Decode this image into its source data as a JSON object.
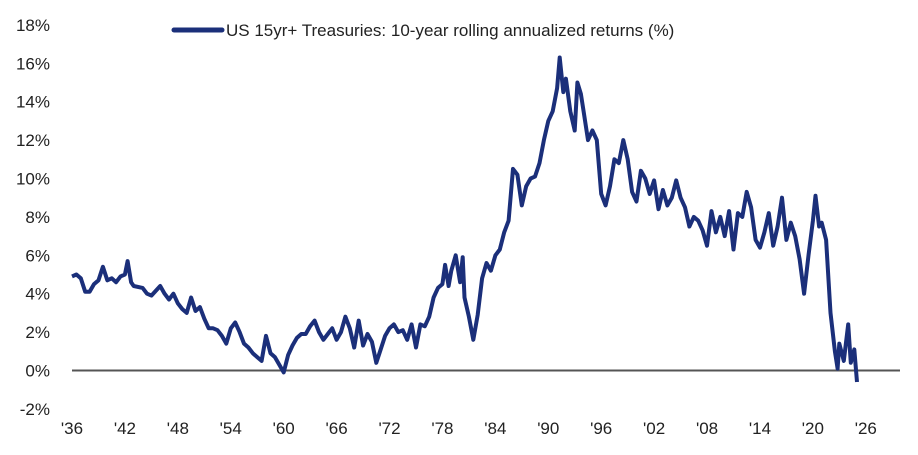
{
  "chart_data": {
    "type": "line",
    "title": "",
    "xlabel": "",
    "ylabel": "",
    "xlim": [
      1936,
      2026
    ],
    "ylim": [
      -2,
      18
    ],
    "grid": false,
    "legend_position": "top-center",
    "x_tick_labels": [
      "'36",
      "'42",
      "'48",
      "'54",
      "'60",
      "'66",
      "'72",
      "'78",
      "'84",
      "'90",
      "'96",
      "'02",
      "'08",
      "'14",
      "'20",
      "'26"
    ],
    "x_tick_values": [
      1936,
      1942,
      1948,
      1954,
      1960,
      1966,
      1972,
      1978,
      1984,
      1990,
      1996,
      2002,
      2008,
      2014,
      2020,
      2026
    ],
    "y_tick_labels": [
      "18%",
      "16%",
      "14%",
      "12%",
      "10%",
      "8%",
      "6%",
      "4%",
      "2%",
      "0%",
      "-2%"
    ],
    "y_tick_values": [
      18,
      16,
      14,
      12,
      10,
      8,
      6,
      4,
      2,
      0,
      -2
    ],
    "zero_line_color": "#555555",
    "series": [
      {
        "name": "US 15yr+ Treasuries: 10-year rolling annualized returns (%)",
        "color": "#1b2f7a",
        "points": [
          [
            1936,
            4.9
          ],
          [
            1936.5,
            5.0
          ],
          [
            1937,
            4.8
          ],
          [
            1937.5,
            4.1
          ],
          [
            1938,
            4.1
          ],
          [
            1938.5,
            4.5
          ],
          [
            1939,
            4.7
          ],
          [
            1939.5,
            5.4
          ],
          [
            1940,
            4.7
          ],
          [
            1940.5,
            4.8
          ],
          [
            1941,
            4.6
          ],
          [
            1941.5,
            4.9
          ],
          [
            1942,
            5.0
          ],
          [
            1942.3,
            5.7
          ],
          [
            1942.7,
            4.6
          ],
          [
            1943,
            4.4
          ],
          [
            1944,
            4.3
          ],
          [
            1944.5,
            4.0
          ],
          [
            1945,
            3.9
          ],
          [
            1946,
            4.4
          ],
          [
            1946.5,
            4.0
          ],
          [
            1947,
            3.7
          ],
          [
            1947.5,
            4.0
          ],
          [
            1948,
            3.5
          ],
          [
            1948.5,
            3.2
          ],
          [
            1949,
            3.0
          ],
          [
            1949.5,
            3.8
          ],
          [
            1950,
            3.1
          ],
          [
            1950.5,
            3.3
          ],
          [
            1951,
            2.7
          ],
          [
            1951.5,
            2.2
          ],
          [
            1952,
            2.2
          ],
          [
            1952.5,
            2.1
          ],
          [
            1953,
            1.8
          ],
          [
            1953.5,
            1.4
          ],
          [
            1954,
            2.2
          ],
          [
            1954.5,
            2.5
          ],
          [
            1955,
            2.0
          ],
          [
            1955.5,
            1.4
          ],
          [
            1956,
            1.2
          ],
          [
            1956.5,
            0.9
          ],
          [
            1957,
            0.7
          ],
          [
            1957.5,
            0.5
          ],
          [
            1958,
            1.8
          ],
          [
            1958.5,
            0.9
          ],
          [
            1959,
            0.7
          ],
          [
            1959.5,
            0.3
          ],
          [
            1960,
            -0.1
          ],
          [
            1960.5,
            0.8
          ],
          [
            1961,
            1.3
          ],
          [
            1961.5,
            1.7
          ],
          [
            1962,
            1.9
          ],
          [
            1962.5,
            1.9
          ],
          [
            1963,
            2.3
          ],
          [
            1963.5,
            2.6
          ],
          [
            1964,
            2.0
          ],
          [
            1964.5,
            1.6
          ],
          [
            1965,
            1.9
          ],
          [
            1965.5,
            2.2
          ],
          [
            1966,
            1.6
          ],
          [
            1966.5,
            2.0
          ],
          [
            1967,
            2.8
          ],
          [
            1967.5,
            2.2
          ],
          [
            1968,
            1.2
          ],
          [
            1968.5,
            2.6
          ],
          [
            1969,
            1.3
          ],
          [
            1969.5,
            1.9
          ],
          [
            1970,
            1.5
          ],
          [
            1970.5,
            0.4
          ],
          [
            1971,
            1.1
          ],
          [
            1971.5,
            1.8
          ],
          [
            1972,
            2.2
          ],
          [
            1972.5,
            2.4
          ],
          [
            1973,
            2.0
          ],
          [
            1973.5,
            2.1
          ],
          [
            1974,
            1.6
          ],
          [
            1974.5,
            2.4
          ],
          [
            1975,
            1.2
          ],
          [
            1975.5,
            2.4
          ],
          [
            1976,
            2.3
          ],
          [
            1976.5,
            2.8
          ],
          [
            1977,
            3.8
          ],
          [
            1977.5,
            4.3
          ],
          [
            1978,
            4.5
          ],
          [
            1978.3,
            5.5
          ],
          [
            1978.7,
            4.4
          ],
          [
            1979,
            5.2
          ],
          [
            1979.5,
            6.0
          ],
          [
            1980,
            4.6
          ],
          [
            1980.3,
            5.9
          ],
          [
            1980.5,
            3.8
          ],
          [
            1981,
            2.8
          ],
          [
            1981.5,
            1.6
          ],
          [
            1982,
            2.9
          ],
          [
            1982.5,
            4.8
          ],
          [
            1983,
            5.6
          ],
          [
            1983.5,
            5.2
          ],
          [
            1984,
            6.0
          ],
          [
            1984.5,
            6.3
          ],
          [
            1985,
            7.2
          ],
          [
            1985.5,
            7.8
          ],
          [
            1986,
            10.5
          ],
          [
            1986.5,
            10.2
          ],
          [
            1987,
            8.6
          ],
          [
            1987.5,
            9.6
          ],
          [
            1988,
            10.0
          ],
          [
            1988.5,
            10.1
          ],
          [
            1989,
            10.8
          ],
          [
            1989.5,
            12.0
          ],
          [
            1990,
            13.0
          ],
          [
            1990.5,
            13.5
          ],
          [
            1991,
            14.7
          ],
          [
            1991.3,
            16.3
          ],
          [
            1991.7,
            14.5
          ],
          [
            1992,
            15.2
          ],
          [
            1992.5,
            13.5
          ],
          [
            1993,
            12.5
          ],
          [
            1993.3,
            15.0
          ],
          [
            1993.7,
            14.4
          ],
          [
            1994,
            13.5
          ],
          [
            1994.5,
            12.0
          ],
          [
            1995,
            12.5
          ],
          [
            1995.5,
            12.0
          ],
          [
            1996,
            9.2
          ],
          [
            1996.5,
            8.6
          ],
          [
            1997,
            9.6
          ],
          [
            1997.5,
            11.0
          ],
          [
            1998,
            10.8
          ],
          [
            1998.5,
            12.0
          ],
          [
            1999,
            11.0
          ],
          [
            1999.5,
            9.3
          ],
          [
            2000,
            8.8
          ],
          [
            2000.5,
            10.4
          ],
          [
            2001,
            10.0
          ],
          [
            2001.5,
            9.2
          ],
          [
            2002,
            9.9
          ],
          [
            2002.5,
            8.4
          ],
          [
            2003,
            9.4
          ],
          [
            2003.5,
            8.6
          ],
          [
            2004,
            9.0
          ],
          [
            2004.5,
            9.9
          ],
          [
            2005,
            9.0
          ],
          [
            2005.5,
            8.5
          ],
          [
            2006,
            7.5
          ],
          [
            2006.5,
            8.0
          ],
          [
            2007,
            7.8
          ],
          [
            2007.5,
            7.3
          ],
          [
            2008,
            6.5
          ],
          [
            2008.5,
            8.3
          ],
          [
            2009,
            7.2
          ],
          [
            2009.5,
            8.0
          ],
          [
            2010,
            7.0
          ],
          [
            2010.5,
            8.3
          ],
          [
            2011,
            6.3
          ],
          [
            2011.5,
            8.2
          ],
          [
            2012,
            8.0
          ],
          [
            2012.5,
            9.3
          ],
          [
            2013,
            8.5
          ],
          [
            2013.5,
            6.8
          ],
          [
            2014,
            6.4
          ],
          [
            2014.5,
            7.2
          ],
          [
            2015,
            8.2
          ],
          [
            2015.5,
            6.5
          ],
          [
            2016,
            7.5
          ],
          [
            2016.5,
            9.0
          ],
          [
            2017,
            6.8
          ],
          [
            2017.5,
            7.7
          ],
          [
            2018,
            7.0
          ],
          [
            2018.5,
            5.8
          ],
          [
            2019,
            4.0
          ],
          [
            2019.5,
            6.0
          ],
          [
            2020,
            7.8
          ],
          [
            2020.3,
            9.1
          ],
          [
            2020.7,
            7.5
          ],
          [
            2021,
            7.7
          ],
          [
            2021.5,
            6.8
          ],
          [
            2022,
            3.0
          ],
          [
            2022.5,
            1.0
          ],
          [
            2022.8,
            0.1
          ],
          [
            2023,
            1.4
          ],
          [
            2023.5,
            0.5
          ],
          [
            2024,
            2.4
          ],
          [
            2024.3,
            0.4
          ],
          [
            2024.7,
            1.1
          ],
          [
            2025,
            -0.6
          ]
        ]
      }
    ]
  }
}
